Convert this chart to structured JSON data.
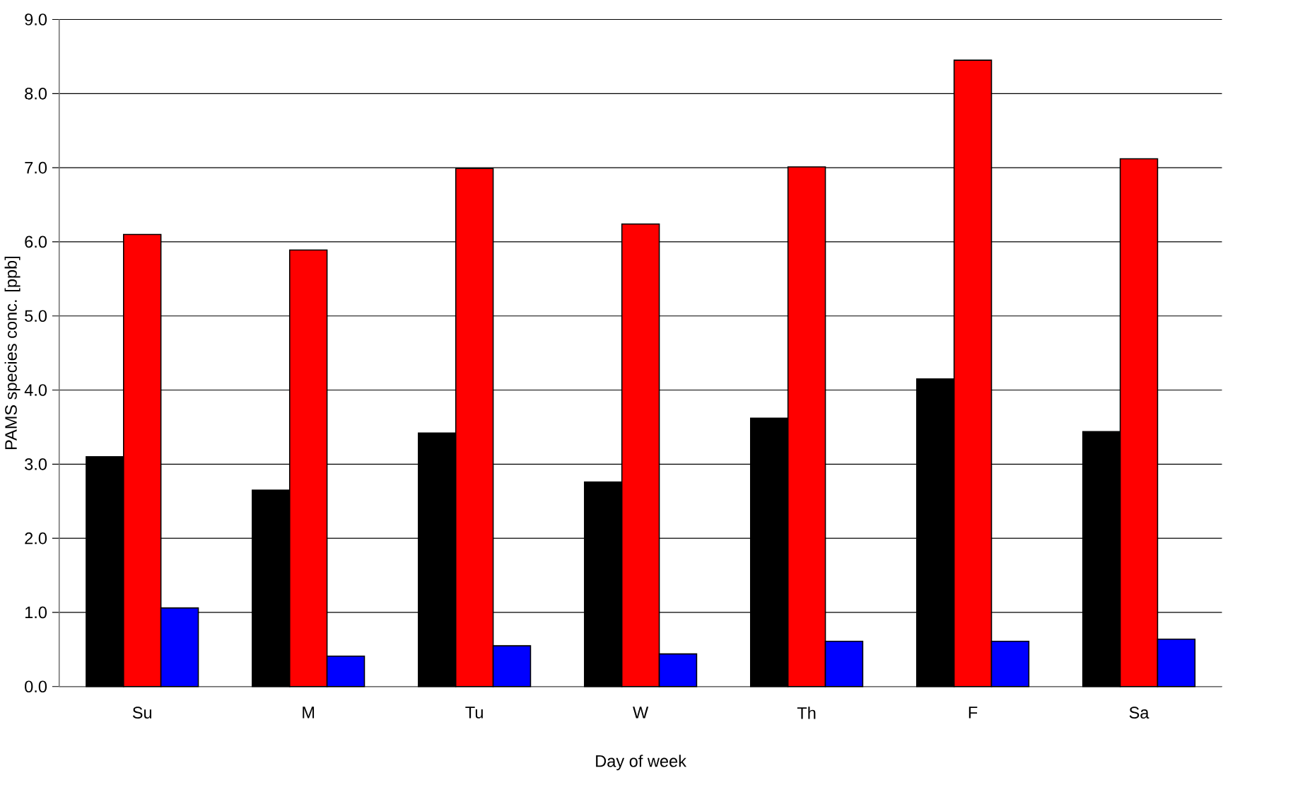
{
  "chart_data": {
    "type": "bar",
    "xlabel": "Day of week",
    "ylabel": "PAMS species conc. [ppb]",
    "categories": [
      "Su",
      "M",
      "Tu",
      "W",
      "Th",
      "F",
      "Sa"
    ],
    "series": [
      {
        "color": "#000000",
        "values": [
          3.1,
          2.65,
          3.42,
          2.76,
          3.62,
          4.15,
          3.44
        ]
      },
      {
        "color": "#ff0000",
        "values": [
          6.1,
          5.89,
          6.99,
          6.24,
          7.01,
          8.45,
          7.12
        ]
      },
      {
        "color": "#0000ff",
        "values": [
          1.06,
          0.41,
          0.55,
          0.44,
          0.61,
          0.61,
          0.64
        ]
      }
    ],
    "ylim": [
      0,
      9
    ],
    "yticks": [
      {
        "value": 0,
        "label": "0.0"
      },
      {
        "value": 1,
        "label": "1.0"
      },
      {
        "value": 2,
        "label": "2.0"
      },
      {
        "value": 3,
        "label": "3.0"
      },
      {
        "value": 4,
        "label": "4.0"
      },
      {
        "value": 5,
        "label": "5.0"
      },
      {
        "value": 6,
        "label": "6.0"
      },
      {
        "value": 7,
        "label": "7.0"
      },
      {
        "value": 8,
        "label": "8.0"
      },
      {
        "value": 9,
        "label": "9.0"
      }
    ],
    "grid": "y"
  }
}
